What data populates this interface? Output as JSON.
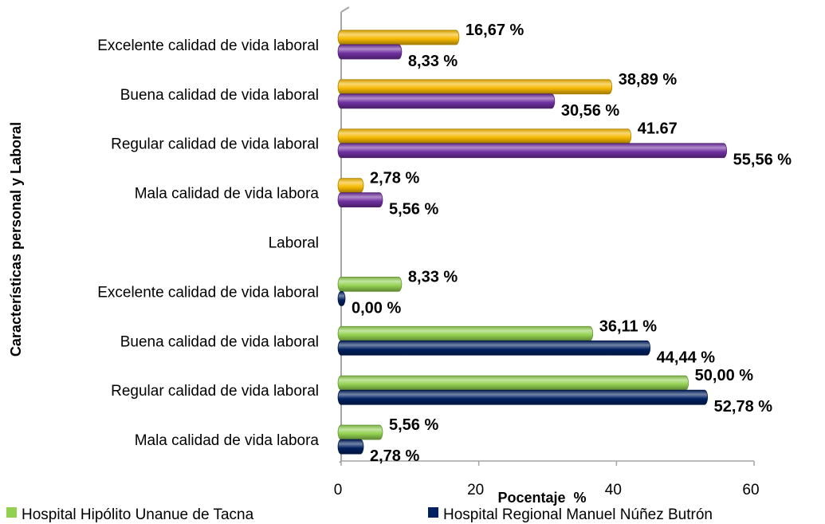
{
  "chart_data": {
    "type": "bar",
    "orientation": "horizontal",
    "x_label": "Pocentaje  %",
    "y_label": "Características personal y Laboral",
    "categories": [
      "Excelente calidad de vida laboral",
      "Buena calidad de vida laboral",
      "Regular calidad de vida laboral",
      "Mala calidad de vida labora",
      "Laboral",
      "Excelente calidad de vida laboral",
      "Buena calidad de vida laboral",
      "Regular calidad de vida laboral",
      "Mala calidad de vida labora"
    ],
    "series": [
      {
        "color": "#f5b800",
        "values": [
          16.67,
          38.89,
          41.67,
          2.78,
          null,
          null,
          null,
          null,
          null
        ],
        "value_labels": [
          "16,67 %",
          "38,89 %",
          "41.67",
          "2,78 %",
          null,
          null,
          null,
          null,
          null
        ]
      },
      {
        "color": "#7030a0",
        "values": [
          8.33,
          30.56,
          55.56,
          5.56,
          null,
          null,
          null,
          null,
          null
        ],
        "value_labels": [
          "8,33 %",
          "30,56 %",
          "55,56 %",
          "5,56 %",
          null,
          null,
          null,
          null,
          null
        ]
      },
      {
        "name": "Hospital Hipólito Unanue de Tacna",
        "color": "#92d050",
        "values": [
          null,
          null,
          null,
          null,
          null,
          8.33,
          36.11,
          50.0,
          5.56
        ],
        "value_labels": [
          null,
          null,
          null,
          null,
          null,
          "8,33 %",
          "36,11 %",
          "50,00 %",
          "5,56 %"
        ]
      },
      {
        "name": "Hospital Regional Manuel Núñez Butrón",
        "color": "#002060",
        "values": [
          null,
          null,
          null,
          null,
          null,
          0.0,
          44.44,
          52.78,
          2.78
        ],
        "value_labels": [
          null,
          null,
          null,
          null,
          null,
          "0,00 %",
          "44,44 %",
          "52,78 %",
          "2,78 %"
        ]
      }
    ],
    "xlim": [
      0,
      60
    ],
    "xticks": [
      0,
      20,
      40,
      60
    ],
    "grid": false
  }
}
